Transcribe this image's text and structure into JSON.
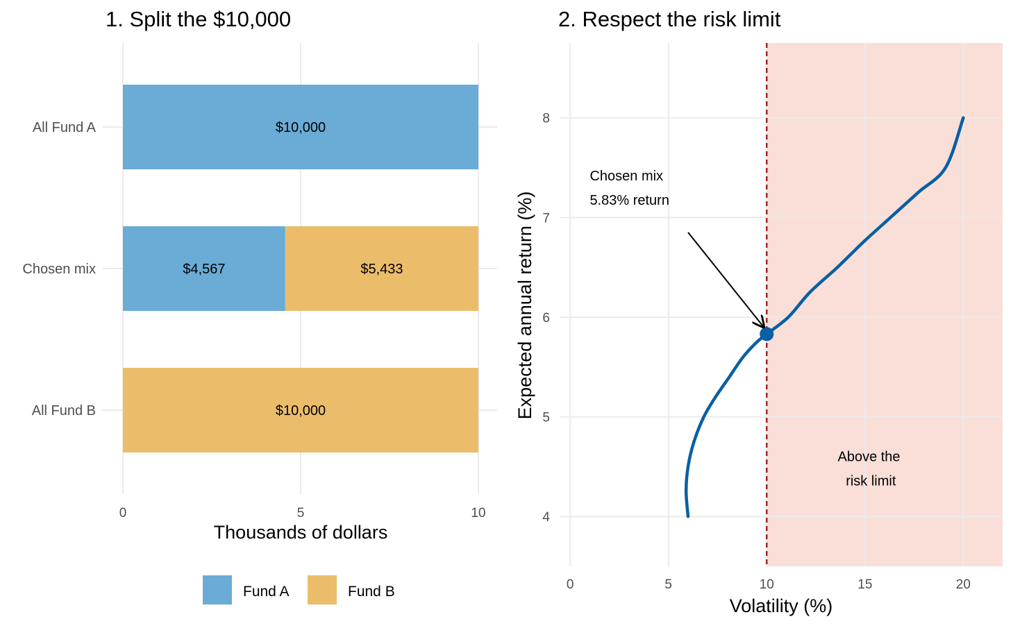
{
  "colors": {
    "fund_a": "#6aacd6",
    "fund_b": "#ebbd6b",
    "curve": "#095fa3",
    "limit_line": "#a32525",
    "limit_region": "#f9dfd8",
    "grid": "#ebebeb"
  },
  "legend": {
    "position": "bottom-left",
    "items": [
      {
        "label": "Fund A",
        "color": "#6aacd6"
      },
      {
        "label": "Fund B",
        "color": "#ebbd6b"
      }
    ]
  },
  "chart_data": [
    {
      "type": "bar",
      "orientation": "horizontal",
      "stacked": true,
      "title": "1. Split the $10,000",
      "xlabel": "Thousands of dollars",
      "ylabel": "",
      "xlim": [
        0,
        10
      ],
      "xticks": [
        0,
        5,
        10
      ],
      "grid": true,
      "categories": [
        "All Fund A",
        "Chosen mix",
        "All Fund B"
      ],
      "series": [
        {
          "name": "Fund A",
          "values": [
            10,
            4.567,
            0
          ],
          "labels": [
            "$10,000",
            "$4,567",
            ""
          ]
        },
        {
          "name": "Fund B",
          "values": [
            0,
            5.433,
            10
          ],
          "labels": [
            "",
            "$5,433",
            "$10,000"
          ]
        }
      ]
    },
    {
      "type": "line",
      "title": "2. Respect the risk limit",
      "xlabel": "Volatility (%)",
      "ylabel": "Expected annual return (%)",
      "xlim": [
        -0.5,
        22
      ],
      "ylim": [
        3.5,
        8.75
      ],
      "xticks": [
        0,
        5,
        10,
        15,
        20
      ],
      "yticks": [
        4,
        5,
        6,
        7,
        8
      ],
      "grid": true,
      "series": [
        {
          "x": [
            6.0,
            5.9,
            6.0,
            6.3,
            6.8,
            7.4,
            8.1,
            8.8,
            9.5,
            10.0,
            11.1,
            12.2,
            13.6,
            14.9,
            16.3,
            17.7,
            19.1,
            20.0
          ],
          "y": [
            4.0,
            4.25,
            4.5,
            4.75,
            5.0,
            5.2,
            5.4,
            5.6,
            5.75,
            5.83,
            6.0,
            6.25,
            6.5,
            6.75,
            7.0,
            7.25,
            7.5,
            8.0
          ]
        }
      ],
      "risk_limit": 10,
      "shaded_region": {
        "x": [
          10,
          22
        ],
        "label_lines": [
          "Above the",
          "risk limit"
        ],
        "label_x": 14.0,
        "label_y": 4.38
      },
      "chosen_point": {
        "x": 10,
        "y": 5.83
      },
      "annotation": {
        "lines": [
          "Chosen mix",
          "5.83% return"
        ],
        "x": 1.0,
        "y": 7.3,
        "arrow_from": [
          6.0,
          6.85
        ],
        "arrow_to": [
          9.85,
          5.9
        ]
      }
    }
  ]
}
